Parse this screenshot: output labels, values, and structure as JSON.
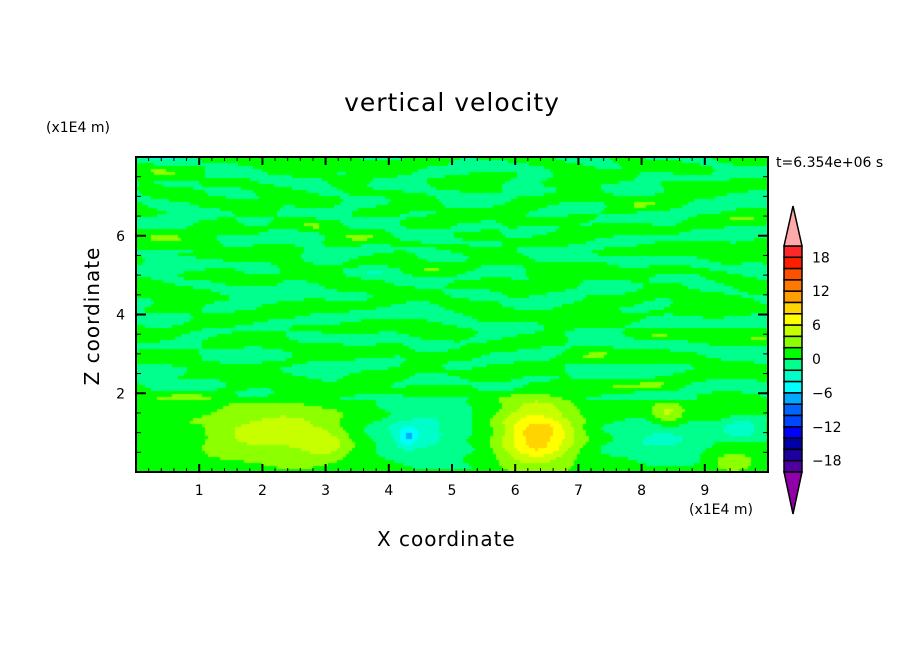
{
  "chart_data": {
    "type": "heatmap",
    "style": "filled contour",
    "title": "vertical velocity",
    "xlabel": "X coordinate",
    "ylabel": "Z coordinate",
    "x_unit": "(x1E4 m)",
    "y_unit": "(x1E4 m)",
    "time_label": "t=6.354e+06 s",
    "xlim": [
      0,
      10
    ],
    "ylim": [
      0,
      8
    ],
    "x_ticks": [
      1,
      2,
      3,
      4,
      5,
      6,
      7,
      8,
      9
    ],
    "y_ticks": [
      2,
      4,
      6
    ],
    "colorbar": {
      "levels_min": -20,
      "levels_max": 20,
      "level_step": 2,
      "tick_labels": [
        "18",
        "12",
        "6",
        "0",
        "−6",
        "−12",
        "−18"
      ],
      "tick_values": [
        18,
        12,
        6,
        0,
        -6,
        -12,
        -18
      ],
      "colors_top_to_bottom": [
        "#ff2828",
        "#ff1e00",
        "#ff5000",
        "#ff7800",
        "#ffa000",
        "#ffd400",
        "#ffff00",
        "#c8ff00",
        "#8cff00",
        "#00ff00",
        "#00ff8c",
        "#00ffc8",
        "#00ffff",
        "#00aaff",
        "#0064ff",
        "#0046ff",
        "#0000ff",
        "#0000a8",
        "#1e00a0",
        "#5000a0"
      ],
      "over_color": "#ffaaaa",
      "under_color": "#9000a8"
    },
    "field_features": [
      {
        "x": 2.2,
        "z": 1.0,
        "w": 4.5,
        "sx": 1.1,
        "sz": 0.75
      },
      {
        "x": 3.0,
        "z": 0.7,
        "w": 2.6,
        "sx": 0.35,
        "sz": 0.35
      },
      {
        "x": 4.5,
        "z": 1.0,
        "w": -3.5,
        "sx": 0.8,
        "sz": 0.7
      },
      {
        "x": 4.3,
        "z": 0.9,
        "w": -4.0,
        "sx": 0.15,
        "sz": 0.25
      },
      {
        "x": 6.35,
        "z": 0.95,
        "w": 8.6,
        "sx": 0.6,
        "sz": 0.8
      },
      {
        "x": 8.3,
        "z": 0.9,
        "w": -3.0,
        "sx": 0.8,
        "sz": 0.6
      },
      {
        "x": 8.4,
        "z": 1.5,
        "w": 4.8,
        "sx": 0.3,
        "sz": 0.3
      },
      {
        "x": 9.45,
        "z": 0.25,
        "w": 3.2,
        "sx": 0.3,
        "sz": 0.25
      },
      {
        "x": 9.6,
        "z": 1.1,
        "w": -4.2,
        "sx": 0.3,
        "sz": 0.25
      }
    ]
  }
}
